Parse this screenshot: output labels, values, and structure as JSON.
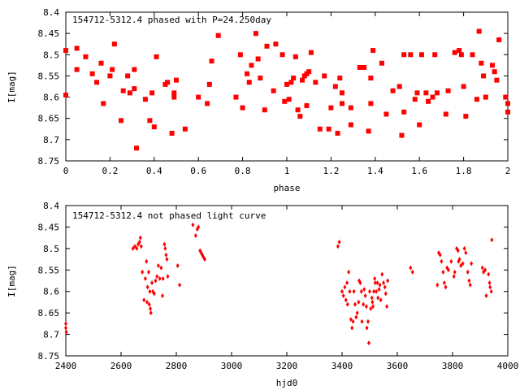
{
  "chart_data": [
    {
      "type": "scatter",
      "title": "154712-5312.4 phased with P=24.250day",
      "xlabel": "phase",
      "ylabel": "I[mag]",
      "xlim": [
        0,
        2
      ],
      "ylim": [
        8.75,
        8.4
      ],
      "y_inverted": true,
      "x_ticks": [
        "0",
        "0.2",
        "0.4",
        "0.6",
        "0.8",
        "1",
        "1.2",
        "1.4",
        "1.6",
        "1.8",
        "2"
      ],
      "y_ticks": [
        "8.4",
        "8.45",
        "8.5",
        "8.55",
        "8.6",
        "8.65",
        "8.7",
        "8.75"
      ],
      "marker": "filled square",
      "color": "#ff0000",
      "points": [
        [
          0.0,
          8.49
        ],
        [
          0.0,
          8.595
        ],
        [
          0.05,
          8.485
        ],
        [
          0.05,
          8.535
        ],
        [
          0.09,
          8.505
        ],
        [
          0.12,
          8.545
        ],
        [
          0.14,
          8.565
        ],
        [
          0.16,
          8.52
        ],
        [
          0.17,
          8.615
        ],
        [
          0.2,
          8.55
        ],
        [
          0.21,
          8.535
        ],
        [
          0.22,
          8.475
        ],
        [
          0.25,
          8.655
        ],
        [
          0.26,
          8.585
        ],
        [
          0.28,
          8.55
        ],
        [
          0.29,
          8.59
        ],
        [
          0.31,
          8.535
        ],
        [
          0.31,
          8.58
        ],
        [
          0.32,
          8.72
        ],
        [
          0.36,
          8.605
        ],
        [
          0.38,
          8.655
        ],
        [
          0.39,
          8.59
        ],
        [
          0.4,
          8.67
        ],
        [
          0.41,
          8.505
        ],
        [
          0.45,
          8.57
        ],
        [
          0.46,
          8.565
        ],
        [
          0.48,
          8.685
        ],
        [
          0.49,
          8.59
        ],
        [
          0.49,
          8.6
        ],
        [
          0.5,
          8.56
        ],
        [
          0.54,
          8.675
        ],
        [
          0.6,
          8.6
        ],
        [
          0.64,
          8.615
        ],
        [
          0.65,
          8.57
        ],
        [
          0.66,
          8.515
        ],
        [
          0.69,
          8.455
        ],
        [
          0.77,
          8.6
        ],
        [
          0.79,
          8.5
        ],
        [
          0.8,
          8.625
        ],
        [
          0.82,
          8.545
        ],
        [
          0.83,
          8.565
        ],
        [
          0.84,
          8.525
        ],
        [
          0.86,
          8.45
        ],
        [
          0.87,
          8.51
        ],
        [
          0.88,
          8.555
        ],
        [
          0.9,
          8.63
        ],
        [
          0.91,
          8.48
        ],
        [
          0.94,
          8.585
        ],
        [
          0.95,
          8.475
        ],
        [
          0.98,
          8.5
        ],
        [
          0.99,
          8.61
        ],
        [
          1.0,
          8.57
        ],
        [
          1.01,
          8.605
        ],
        [
          1.02,
          8.565
        ],
        [
          1.03,
          8.555
        ],
        [
          1.04,
          8.505
        ],
        [
          1.05,
          8.63
        ],
        [
          1.06,
          8.645
        ],
        [
          1.07,
          8.56
        ],
        [
          1.08,
          8.55
        ],
        [
          1.09,
          8.545
        ],
        [
          1.09,
          8.62
        ],
        [
          1.1,
          8.54
        ],
        [
          1.11,
          8.495
        ],
        [
          1.13,
          8.565
        ],
        [
          1.15,
          8.675
        ],
        [
          1.17,
          8.55
        ],
        [
          1.19,
          8.675
        ],
        [
          1.2,
          8.625
        ],
        [
          1.22,
          8.575
        ],
        [
          1.23,
          8.685
        ],
        [
          1.24,
          8.555
        ],
        [
          1.25,
          8.615
        ],
        [
          1.25,
          8.59
        ],
        [
          1.29,
          8.665
        ],
        [
          1.29,
          8.625
        ],
        [
          1.33,
          8.53
        ],
        [
          1.35,
          8.53
        ],
        [
          1.37,
          8.68
        ],
        [
          1.38,
          8.555
        ],
        [
          1.38,
          8.615
        ],
        [
          1.39,
          8.49
        ],
        [
          1.43,
          8.52
        ],
        [
          1.45,
          8.64
        ],
        [
          1.48,
          8.585
        ],
        [
          1.51,
          8.575
        ],
        [
          1.52,
          8.69
        ],
        [
          1.53,
          8.5
        ],
        [
          1.53,
          8.635
        ],
        [
          1.56,
          8.5
        ],
        [
          1.58,
          8.605
        ],
        [
          1.59,
          8.59
        ],
        [
          1.6,
          8.665
        ],
        [
          1.61,
          8.5
        ],
        [
          1.63,
          8.59
        ],
        [
          1.64,
          8.61
        ],
        [
          1.66,
          8.6
        ],
        [
          1.67,
          8.5
        ],
        [
          1.68,
          8.59
        ],
        [
          1.72,
          8.64
        ],
        [
          1.73,
          8.585
        ],
        [
          1.76,
          8.495
        ],
        [
          1.78,
          8.49
        ],
        [
          1.79,
          8.5
        ],
        [
          1.8,
          8.575
        ],
        [
          1.81,
          8.645
        ],
        [
          1.84,
          8.5
        ],
        [
          1.86,
          8.605
        ],
        [
          1.87,
          8.445
        ],
        [
          1.88,
          8.52
        ],
        [
          1.89,
          8.55
        ],
        [
          1.9,
          8.6
        ],
        [
          1.93,
          8.525
        ],
        [
          1.94,
          8.54
        ],
        [
          1.95,
          8.56
        ],
        [
          1.96,
          8.465
        ],
        [
          1.99,
          8.6
        ],
        [
          2.0,
          8.615
        ],
        [
          2.0,
          8.635
        ]
      ]
    },
    {
      "type": "scatter",
      "title": "154712-5312.4 not phased light curve",
      "xlabel": "hjd0",
      "ylabel": "I[mag]",
      "xlim": [
        2400,
        4000
      ],
      "ylim": [
        8.75,
        8.4
      ],
      "y_inverted": true,
      "x_ticks": [
        "2400",
        "2600",
        "2800",
        "3000",
        "3200",
        "3400",
        "3600",
        "3800",
        "4000"
      ],
      "y_ticks": [
        "8.4",
        "8.45",
        "8.5",
        "8.55",
        "8.6",
        "8.65",
        "8.7",
        "8.75"
      ],
      "marker": "filled diamond",
      "color": "#ff0000",
      "points": [
        [
          2400,
          8.675
        ],
        [
          2400,
          8.685
        ],
        [
          2402,
          8.695
        ],
        [
          2643,
          8.5
        ],
        [
          2650,
          8.495
        ],
        [
          2657,
          8.5
        ],
        [
          2662,
          8.49
        ],
        [
          2667,
          8.485
        ],
        [
          2670,
          8.475
        ],
        [
          2673,
          8.495
        ],
        [
          2677,
          8.555
        ],
        [
          2683,
          8.62
        ],
        [
          2688,
          8.57
        ],
        [
          2692,
          8.53
        ],
        [
          2694,
          8.625
        ],
        [
          2696,
          8.59
        ],
        [
          2700,
          8.555
        ],
        [
          2702,
          8.63
        ],
        [
          2704,
          8.6
        ],
        [
          2706,
          8.64
        ],
        [
          2708,
          8.65
        ],
        [
          2712,
          8.58
        ],
        [
          2715,
          8.6
        ],
        [
          2720,
          8.605
        ],
        [
          2725,
          8.575
        ],
        [
          2730,
          8.565
        ],
        [
          2735,
          8.54
        ],
        [
          2740,
          8.57
        ],
        [
          2745,
          8.545
        ],
        [
          2750,
          8.61
        ],
        [
          2752,
          8.57
        ],
        [
          2757,
          8.49
        ],
        [
          2760,
          8.5
        ],
        [
          2763,
          8.515
        ],
        [
          2766,
          8.525
        ],
        [
          2769,
          8.565
        ],
        [
          2805,
          8.54
        ],
        [
          2812,
          8.585
        ],
        [
          2860,
          8.445
        ],
        [
          2870,
          8.47
        ],
        [
          2876,
          8.455
        ],
        [
          2880,
          8.45
        ],
        [
          2886,
          8.505
        ],
        [
          2890,
          8.51
        ],
        [
          2894,
          8.515
        ],
        [
          2898,
          8.52
        ],
        [
          2903,
          8.525
        ],
        [
          3385,
          8.495
        ],
        [
          3390,
          8.485
        ],
        [
          3400,
          8.6
        ],
        [
          3405,
          8.61
        ],
        [
          3410,
          8.59
        ],
        [
          3414,
          8.62
        ],
        [
          3418,
          8.58
        ],
        [
          3420,
          8.63
        ],
        [
          3424,
          8.555
        ],
        [
          3428,
          8.6
        ],
        [
          3432,
          8.665
        ],
        [
          3436,
          8.685
        ],
        [
          3440,
          8.67
        ],
        [
          3443,
          8.6
        ],
        [
          3447,
          8.63
        ],
        [
          3451,
          8.66
        ],
        [
          3455,
          8.65
        ],
        [
          3460,
          8.625
        ],
        [
          3462,
          8.575
        ],
        [
          3466,
          8.58
        ],
        [
          3470,
          8.6
        ],
        [
          3472,
          8.67
        ],
        [
          3477,
          8.63
        ],
        [
          3480,
          8.595
        ],
        [
          3484,
          8.61
        ],
        [
          3488,
          8.635
        ],
        [
          3490,
          8.685
        ],
        [
          3494,
          8.67
        ],
        [
          3497,
          8.72
        ],
        [
          3500,
          8.6
        ],
        [
          3504,
          8.64
        ],
        [
          3508,
          8.615
        ],
        [
          3510,
          8.625
        ],
        [
          3512,
          8.635
        ],
        [
          3515,
          8.6
        ],
        [
          3518,
          8.57
        ],
        [
          3520,
          8.58
        ],
        [
          3524,
          8.6
        ],
        [
          3528,
          8.58
        ],
        [
          3530,
          8.615
        ],
        [
          3534,
          8.595
        ],
        [
          3537,
          8.585
        ],
        [
          3540,
          8.62
        ],
        [
          3545,
          8.56
        ],
        [
          3550,
          8.58
        ],
        [
          3555,
          8.59
        ],
        [
          3558,
          8.605
        ],
        [
          3562,
          8.635
        ],
        [
          3565,
          8.575
        ],
        [
          3648,
          8.545
        ],
        [
          3655,
          8.555
        ],
        [
          3745,
          8.585
        ],
        [
          3750,
          8.51
        ],
        [
          3755,
          8.515
        ],
        [
          3760,
          8.53
        ],
        [
          3766,
          8.555
        ],
        [
          3770,
          8.58
        ],
        [
          3775,
          8.59
        ],
        [
          3780,
          8.545
        ],
        [
          3785,
          8.55
        ],
        [
          3795,
          8.53
        ],
        [
          3805,
          8.565
        ],
        [
          3808,
          8.555
        ],
        [
          3815,
          8.5
        ],
        [
          3820,
          8.505
        ],
        [
          3822,
          8.53
        ],
        [
          3825,
          8.525
        ],
        [
          3830,
          8.54
        ],
        [
          3837,
          8.535
        ],
        [
          3843,
          8.5
        ],
        [
          3848,
          8.51
        ],
        [
          3855,
          8.555
        ],
        [
          3860,
          8.575
        ],
        [
          3864,
          8.585
        ],
        [
          3868,
          8.535
        ],
        [
          3908,
          8.545
        ],
        [
          3912,
          8.555
        ],
        [
          3918,
          8.55
        ],
        [
          3922,
          8.61
        ],
        [
          3930,
          8.56
        ],
        [
          3934,
          8.58
        ],
        [
          3936,
          8.59
        ],
        [
          3940,
          8.6
        ],
        [
          3942,
          8.48
        ]
      ]
    }
  ]
}
